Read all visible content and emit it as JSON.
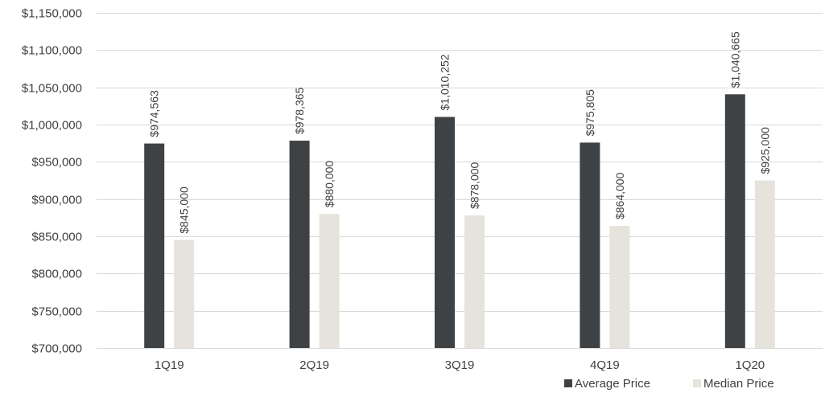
{
  "chart_data": {
    "type": "bar",
    "categories": [
      "1Q19",
      "2Q19",
      "3Q19",
      "4Q19",
      "1Q20"
    ],
    "series": [
      {
        "name": "Average Price",
        "color": "#3f4244",
        "values": [
          974563,
          978365,
          1010252,
          975805,
          1040665
        ],
        "labels": [
          "$974,563",
          "$978,365",
          "$1,010,252",
          "$975,805",
          "$1,040,665"
        ]
      },
      {
        "name": "Median Price",
        "color": "#e6e3dc",
        "values": [
          845000,
          880000,
          878000,
          864000,
          925000
        ],
        "labels": [
          "$845,000",
          "$880,000",
          "$878,000",
          "$864,000",
          "$925,000"
        ]
      }
    ],
    "ylim": [
      700000,
      1150000
    ],
    "y_ticks": [
      700000,
      750000,
      800000,
      850000,
      900000,
      950000,
      1000000,
      1050000,
      1100000,
      1150000
    ],
    "y_tick_labels": [
      "$700,000",
      "$750,000",
      "$800,000",
      "$850,000",
      "$900,000",
      "$950,000",
      "$1,000,000",
      "$1,050,000",
      "$1,100,000",
      "$1,150,000"
    ],
    "grid": true,
    "gridline_color": "#d9d9d9",
    "legend_position": "bottom-right",
    "title": "",
    "xlabel": "",
    "ylabel": ""
  }
}
